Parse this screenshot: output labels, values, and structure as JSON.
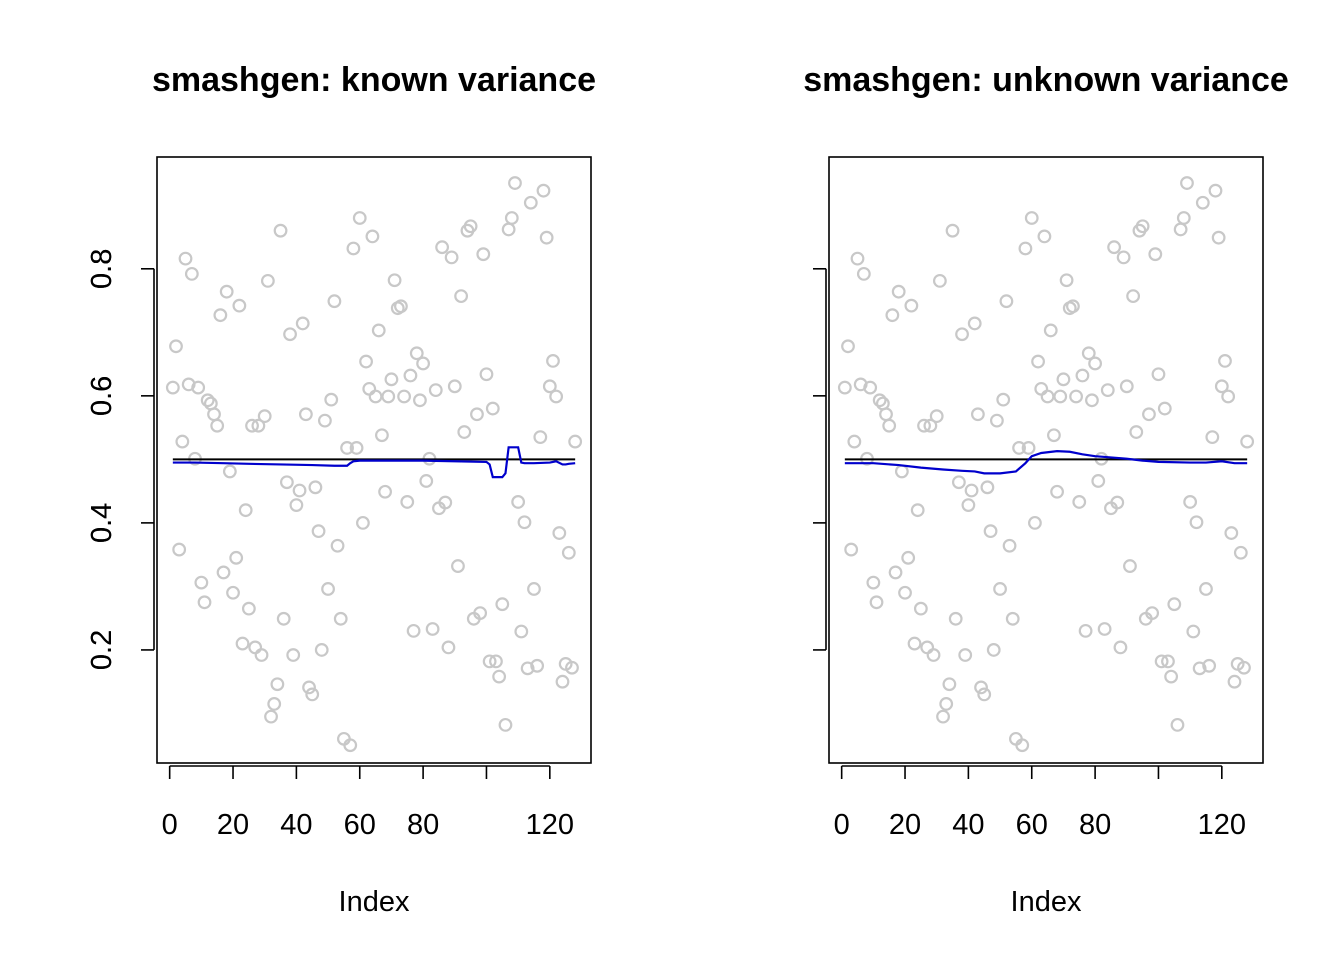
{
  "chart_data": [
    {
      "type": "scatter",
      "title": "smashgen: known variance",
      "xlabel": "Index",
      "ylabel": "",
      "xticks": [
        0,
        20,
        40,
        60,
        80,
        100,
        120
      ],
      "xtick_labels": [
        "0",
        "20",
        "40",
        "60",
        "80",
        "",
        "120"
      ],
      "yticks": [
        0.2,
        0.4,
        0.6,
        0.8
      ],
      "ytick_labels": [
        "0.2",
        "0.4",
        "0.6",
        "0.8"
      ],
      "xlim": [
        -4,
        133
      ],
      "ylim": [
        0.022,
        0.976
      ],
      "grid": false,
      "colors": {
        "points": "#c8c8c8",
        "truth": "#000000",
        "estimate": "#0000cc"
      },
      "series": [
        {
          "kind": "points",
          "x": [
            1,
            2,
            3,
            4,
            5,
            6,
            7,
            8,
            9,
            10,
            11,
            12,
            13,
            14,
            15,
            16,
            17,
            18,
            19,
            20,
            21,
            22,
            23,
            24,
            25,
            26,
            27,
            28,
            29,
            30,
            31,
            32,
            33,
            34,
            35,
            36,
            37,
            38,
            39,
            40,
            41,
            42,
            43,
            44,
            45,
            46,
            47,
            48,
            49,
            50,
            51,
            52,
            53,
            54,
            55,
            56,
            57,
            58,
            59,
            60,
            61,
            62,
            63,
            64,
            65,
            66,
            67,
            68,
            69,
            70,
            71,
            72,
            73,
            74,
            75,
            76,
            77,
            78,
            79,
            80,
            81,
            82,
            83,
            84,
            85,
            86,
            87,
            88,
            89,
            90,
            91,
            92,
            93,
            94,
            95,
            96,
            97,
            98,
            99,
            100,
            101,
            102,
            103,
            104,
            105,
            106,
            107,
            108,
            109,
            110,
            111,
            112,
            113,
            114,
            115,
            116,
            117,
            118,
            119,
            120,
            121,
            122,
            123,
            124,
            125,
            126,
            127,
            128
          ],
          "y": [
            0.613,
            0.678,
            0.358,
            0.528,
            0.816,
            0.618,
            0.792,
            0.501,
            0.613,
            0.306,
            0.275,
            0.593,
            0.588,
            0.571,
            0.553,
            0.727,
            0.322,
            0.764,
            0.481,
            0.29,
            0.345,
            0.742,
            0.21,
            0.42,
            0.265,
            0.553,
            0.204,
            0.553,
            0.192,
            0.568,
            0.781,
            0.095,
            0.115,
            0.146,
            0.86,
            0.249,
            0.464,
            0.697,
            0.192,
            0.428,
            0.451,
            0.714,
            0.571,
            0.141,
            0.13,
            0.456,
            0.387,
            0.2,
            0.561,
            0.296,
            0.594,
            0.749,
            0.364,
            0.249,
            0.06,
            0.518,
            0.05,
            0.832,
            0.518,
            0.88,
            0.4,
            0.654,
            0.611,
            0.851,
            0.599,
            0.703,
            0.538,
            0.449,
            0.599,
            0.626,
            0.782,
            0.738,
            0.741,
            0.599,
            0.433,
            0.632,
            0.23,
            0.667,
            0.593,
            0.651,
            0.466,
            0.501,
            0.233,
            0.609,
            0.423,
            0.834,
            0.432,
            0.204,
            0.818,
            0.615,
            0.332,
            0.757,
            0.543,
            0.86,
            0.867,
            0.249,
            0.571,
            0.258,
            0.823,
            0.634,
            0.182,
            0.58,
            0.182,
            0.158,
            0.272,
            0.082,
            0.862,
            0.88,
            0.935,
            0.433,
            0.229,
            0.401,
            0.171,
            0.904,
            0.296,
            0.175,
            0.535,
            0.923,
            0.849,
            0.615,
            0.655,
            0.599,
            0.384,
            0.15,
            0.178,
            0.353,
            0.172,
            0.528
          ]
        },
        {
          "kind": "line",
          "role": "truth",
          "x": [
            1,
            128
          ],
          "y": [
            0.5,
            0.5
          ]
        },
        {
          "kind": "line",
          "role": "estimate",
          "x": [
            1,
            8,
            17,
            25,
            35,
            45,
            52,
            56,
            57,
            58,
            60,
            70,
            80,
            90,
            100,
            101,
            102,
            104,
            105,
            106,
            107,
            108,
            110,
            111,
            112,
            115,
            120,
            122,
            124,
            125,
            126,
            128
          ],
          "y": [
            0.495,
            0.495,
            0.494,
            0.493,
            0.492,
            0.491,
            0.49,
            0.49,
            0.494,
            0.497,
            0.498,
            0.498,
            0.498,
            0.497,
            0.496,
            0.492,
            0.472,
            0.472,
            0.472,
            0.478,
            0.519,
            0.519,
            0.519,
            0.495,
            0.494,
            0.494,
            0.495,
            0.497,
            0.492,
            0.492,
            0.493,
            0.494
          ]
        }
      ]
    },
    {
      "type": "scatter",
      "title": "smashgen: unknown variance",
      "xlabel": "Index",
      "ylabel": "",
      "xticks": [
        0,
        20,
        40,
        60,
        80,
        100,
        120
      ],
      "xtick_labels": [
        "0",
        "20",
        "40",
        "60",
        "80",
        "",
        "120"
      ],
      "yticks": [
        0.2,
        0.4,
        0.6,
        0.8
      ],
      "ytick_labels": [
        "0.2",
        "0.4",
        "0.6",
        "0.8"
      ],
      "xlim": [
        -4,
        133
      ],
      "ylim": [
        0.022,
        0.976
      ],
      "grid": false,
      "colors": {
        "points": "#c8c8c8",
        "truth": "#000000",
        "estimate": "#0000cc"
      },
      "series": [
        {
          "kind": "points",
          "x": [
            1,
            2,
            3,
            4,
            5,
            6,
            7,
            8,
            9,
            10,
            11,
            12,
            13,
            14,
            15,
            16,
            17,
            18,
            19,
            20,
            21,
            22,
            23,
            24,
            25,
            26,
            27,
            28,
            29,
            30,
            31,
            32,
            33,
            34,
            35,
            36,
            37,
            38,
            39,
            40,
            41,
            42,
            43,
            44,
            45,
            46,
            47,
            48,
            49,
            50,
            51,
            52,
            53,
            54,
            55,
            56,
            57,
            58,
            59,
            60,
            61,
            62,
            63,
            64,
            65,
            66,
            67,
            68,
            69,
            70,
            71,
            72,
            73,
            74,
            75,
            76,
            77,
            78,
            79,
            80,
            81,
            82,
            83,
            84,
            85,
            86,
            87,
            88,
            89,
            90,
            91,
            92,
            93,
            94,
            95,
            96,
            97,
            98,
            99,
            100,
            101,
            102,
            103,
            104,
            105,
            106,
            107,
            108,
            109,
            110,
            111,
            112,
            113,
            114,
            115,
            116,
            117,
            118,
            119,
            120,
            121,
            122,
            123,
            124,
            125,
            126,
            127,
            128
          ],
          "y": [
            0.613,
            0.678,
            0.358,
            0.528,
            0.816,
            0.618,
            0.792,
            0.501,
            0.613,
            0.306,
            0.275,
            0.593,
            0.588,
            0.571,
            0.553,
            0.727,
            0.322,
            0.764,
            0.481,
            0.29,
            0.345,
            0.742,
            0.21,
            0.42,
            0.265,
            0.553,
            0.204,
            0.553,
            0.192,
            0.568,
            0.781,
            0.095,
            0.115,
            0.146,
            0.86,
            0.249,
            0.464,
            0.697,
            0.192,
            0.428,
            0.451,
            0.714,
            0.571,
            0.141,
            0.13,
            0.456,
            0.387,
            0.2,
            0.561,
            0.296,
            0.594,
            0.749,
            0.364,
            0.249,
            0.06,
            0.518,
            0.05,
            0.832,
            0.518,
            0.88,
            0.4,
            0.654,
            0.611,
            0.851,
            0.599,
            0.703,
            0.538,
            0.449,
            0.599,
            0.626,
            0.782,
            0.738,
            0.741,
            0.599,
            0.433,
            0.632,
            0.23,
            0.667,
            0.593,
            0.651,
            0.466,
            0.501,
            0.233,
            0.609,
            0.423,
            0.834,
            0.432,
            0.204,
            0.818,
            0.615,
            0.332,
            0.757,
            0.543,
            0.86,
            0.867,
            0.249,
            0.571,
            0.258,
            0.823,
            0.634,
            0.182,
            0.58,
            0.182,
            0.158,
            0.272,
            0.082,
            0.862,
            0.88,
            0.935,
            0.433,
            0.229,
            0.401,
            0.171,
            0.904,
            0.296,
            0.175,
            0.535,
            0.923,
            0.849,
            0.615,
            0.655,
            0.599,
            0.384,
            0.15,
            0.178,
            0.353,
            0.172,
            0.528
          ]
        },
        {
          "kind": "line",
          "role": "truth",
          "x": [
            1,
            128
          ],
          "y": [
            0.5,
            0.5
          ]
        },
        {
          "kind": "line",
          "role": "estimate",
          "x": [
            1,
            10,
            18,
            25,
            32,
            38,
            42,
            45,
            50,
            55,
            58,
            60,
            63,
            68,
            72,
            76,
            80,
            85,
            90,
            95,
            100,
            110,
            115,
            120,
            124,
            128
          ],
          "y": [
            0.494,
            0.494,
            0.491,
            0.487,
            0.484,
            0.482,
            0.481,
            0.478,
            0.478,
            0.481,
            0.494,
            0.505,
            0.51,
            0.513,
            0.512,
            0.508,
            0.505,
            0.503,
            0.501,
            0.498,
            0.496,
            0.495,
            0.495,
            0.497,
            0.494,
            0.494
          ]
        }
      ]
    }
  ]
}
